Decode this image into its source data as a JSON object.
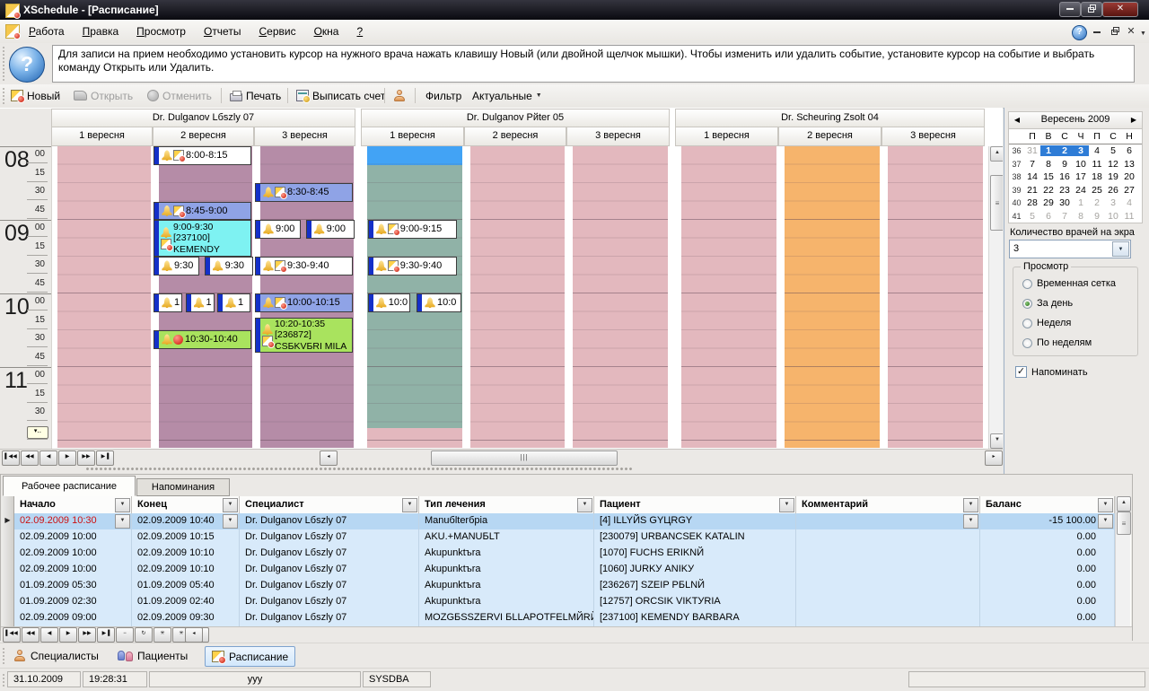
{
  "window": {
    "title": "XSchedule - [Расписание]"
  },
  "menubar": {
    "items": [
      "Работа",
      "Правка",
      "Просмотр",
      "Отчеты",
      "Сервис",
      "Окна",
      "?"
    ]
  },
  "help_panel": {
    "text": "Для записи на прием необходимо установить курсор на нужного врача нажать клавишу Новый (или двойной щелчок мышки). Чтобы изменить или удалить событие, установите курсор на событие и выбрать команду Открыть или Удалить."
  },
  "toolbar": {
    "new": "Новый",
    "open": "Открыть",
    "cancel": "Отменить",
    "print": "Печать",
    "invoice": "Выписать счет",
    "filter_label": "Фильтр",
    "filter_value": "Актуальные"
  },
  "schedule": {
    "doctors": [
      {
        "name": "Dr. Dulganov Lбszlу 07",
        "days": [
          "1 вересня",
          "2 вересня",
          "3 вересня"
        ],
        "day_segments": [
          [
            {
              "s": 480,
              "e": 726,
              "c": "#e3b8be"
            }
          ],
          [
            {
              "s": 480,
              "e": 726,
              "c": "#b58ca7"
            }
          ],
          [
            {
              "s": 480,
              "e": 726,
              "c": "#b58ca7"
            }
          ]
        ]
      },
      {
        "name": "Dr. Dulganov Pйter 05",
        "days": [
          "1 вересня",
          "2 вересня",
          "3 вересня"
        ],
        "day_segments": [
          [
            {
              "s": 480,
              "e": 495,
              "c": "#42a3f5"
            },
            {
              "s": 495,
              "e": 710,
              "c": "#90b2a7"
            },
            {
              "s": 710,
              "e": 726,
              "c": "#e3b8be"
            }
          ],
          [
            {
              "s": 480,
              "e": 726,
              "c": "#e3b8be"
            }
          ],
          [
            {
              "s": 480,
              "e": 726,
              "c": "#e3b8be"
            }
          ]
        ]
      },
      {
        "name": "Dr. Scheuring Zsolt 04",
        "days": [
          "1 вересня",
          "2 вересня",
          "3 вересня"
        ],
        "day_segments": [
          [
            {
              "s": 480,
              "e": 726,
              "c": "#e3b8be"
            }
          ],
          [
            {
              "s": 480,
              "e": 726,
              "c": "#f6b46c"
            }
          ],
          [
            {
              "s": 480,
              "e": 726,
              "c": "#e3b8be"
            }
          ]
        ]
      }
    ],
    "hours": [
      "08",
      "09",
      "10",
      "11"
    ],
    "minutes": [
      "00",
      "15",
      "30",
      "45"
    ],
    "appointments": [
      {
        "doc": 0,
        "day": 1,
        "s": 480,
        "e": 495,
        "bg": "#ffffff",
        "icons": [
          "bell",
          "sched"
        ],
        "label": "8:00-8:15"
      },
      {
        "doc": 0,
        "day": 1,
        "s": 525,
        "e": 540,
        "bg": "#8fa3e6",
        "icons": [
          "bell",
          "sched"
        ],
        "label": "8:45-9:00"
      },
      {
        "doc": 0,
        "day": 1,
        "s": 540,
        "e": 570,
        "bg": "#7ef2f2",
        "icons": [
          "bell",
          "sched"
        ],
        "lines": [
          "9:00-9:30",
          "[237100]",
          "KEMENDY"
        ]
      },
      {
        "doc": 0,
        "day": 1,
        "s": 570,
        "e": 585,
        "x": 0,
        "w": 0.46,
        "bg": "#ffffff",
        "icons": [
          "bell"
        ],
        "label": "9:30"
      },
      {
        "doc": 0,
        "day": 1,
        "s": 570,
        "e": 585,
        "x": 0.51,
        "w": 0.49,
        "bg": "#ffffff",
        "icons": [
          "bell"
        ],
        "label": "9:30"
      },
      {
        "doc": 0,
        "day": 1,
        "s": 600,
        "e": 615,
        "x": 0,
        "w": 0.29,
        "bg": "#ffffff",
        "icons": [
          "bell"
        ],
        "label": "1"
      },
      {
        "doc": 0,
        "day": 1,
        "s": 600,
        "e": 615,
        "x": 0.32,
        "w": 0.29,
        "bg": "#ffffff",
        "icons": [
          "bell"
        ],
        "label": "1"
      },
      {
        "doc": 0,
        "day": 1,
        "s": 600,
        "e": 615,
        "x": 0.64,
        "w": 0.33,
        "bg": "#ffffff",
        "icons": [
          "bell"
        ],
        "label": "1"
      },
      {
        "doc": 0,
        "day": 1,
        "s": 630,
        "e": 645,
        "bg": "#a9e35e",
        "icons": [
          "bell",
          "alarm"
        ],
        "label": "10:30-10:40"
      },
      {
        "doc": 0,
        "day": 2,
        "s": 510,
        "e": 525,
        "bg": "#8fa3e6",
        "icons": [
          "bell",
          "sched"
        ],
        "label": "8:30-8:45"
      },
      {
        "doc": 0,
        "day": 2,
        "s": 540,
        "e": 555,
        "x": 0,
        "w": 0.46,
        "bg": "#ffffff",
        "icons": [
          "bell"
        ],
        "label": "9:00"
      },
      {
        "doc": 0,
        "day": 2,
        "s": 540,
        "e": 555,
        "x": 0.51,
        "w": 0.49,
        "bg": "#ffffff",
        "icons": [
          "bell"
        ],
        "label": "9:00"
      },
      {
        "doc": 0,
        "day": 2,
        "s": 570,
        "e": 585,
        "bg": "#ffffff",
        "icons": [
          "bell",
          "sched"
        ],
        "label": "9:30-9:40"
      },
      {
        "doc": 0,
        "day": 2,
        "s": 600,
        "e": 615,
        "bg": "#8fa3e6",
        "icons": [
          "bell",
          "sched"
        ],
        "label": "10:00-10:15"
      },
      {
        "doc": 0,
        "day": 2,
        "s": 620,
        "e": 648,
        "bg": "#a9e35e",
        "icons": [
          "bell",
          "sched"
        ],
        "lines": [
          "10:20-10:35",
          "[236872]",
          "CSБKVБRI MILA"
        ]
      },
      {
        "doc": 1,
        "day": 0,
        "s": 540,
        "e": 555,
        "x": 0.06,
        "w": 0.88,
        "bg": "#ffffff",
        "icons": [
          "bell",
          "sched"
        ],
        "label": "9:00-9:15"
      },
      {
        "doc": 1,
        "day": 0,
        "s": 570,
        "e": 585,
        "x": 0.06,
        "w": 0.88,
        "bg": "#ffffff",
        "icons": [
          "bell",
          "sched"
        ],
        "label": "9:30-9:40"
      },
      {
        "doc": 1,
        "day": 0,
        "s": 600,
        "e": 615,
        "x": 0.06,
        "w": 0.42,
        "bg": "#ffffff",
        "icons": [
          "bell"
        ],
        "label": "10:0"
      },
      {
        "doc": 1,
        "day": 0,
        "s": 600,
        "e": 615,
        "x": 0.54,
        "w": 0.44,
        "bg": "#ffffff",
        "icons": [
          "bell"
        ],
        "label": "10:0"
      }
    ],
    "nav_buttons": [
      "▌◀◀",
      "◀◀",
      "◀",
      "▶",
      "▶▶",
      "▶▐"
    ]
  },
  "sidebar": {
    "calendar": {
      "title": "Вересень 2009",
      "prev": "◀",
      "next": "▶",
      "dow": [
        "П",
        "В",
        "С",
        "Ч",
        "П",
        "С",
        "Н"
      ],
      "weeks": [
        {
          "num": "36",
          "days": [
            {
              "d": "31",
              "o": 1
            },
            {
              "d": "1",
              "sel": 1
            },
            {
              "d": "2",
              "sel": 1
            },
            {
              "d": "3",
              "sel": 1
            },
            {
              "d": "4"
            },
            {
              "d": "5"
            },
            {
              "d": "6"
            }
          ]
        },
        {
          "num": "37",
          "days": [
            {
              "d": "7"
            },
            {
              "d": "8"
            },
            {
              "d": "9"
            },
            {
              "d": "10"
            },
            {
              "d": "11"
            },
            {
              "d": "12"
            },
            {
              "d": "13"
            }
          ]
        },
        {
          "num": "38",
          "days": [
            {
              "d": "14"
            },
            {
              "d": "15"
            },
            {
              "d": "16"
            },
            {
              "d": "17"
            },
            {
              "d": "18"
            },
            {
              "d": "19"
            },
            {
              "d": "20"
            }
          ]
        },
        {
          "num": "39",
          "days": [
            {
              "d": "21"
            },
            {
              "d": "22"
            },
            {
              "d": "23"
            },
            {
              "d": "24"
            },
            {
              "d": "25"
            },
            {
              "d": "26"
            },
            {
              "d": "27"
            }
          ]
        },
        {
          "num": "40",
          "days": [
            {
              "d": "28"
            },
            {
              "d": "29"
            },
            {
              "d": "30"
            },
            {
              "d": "1",
              "o": 1
            },
            {
              "d": "2",
              "o": 1
            },
            {
              "d": "3",
              "o": 1
            },
            {
              "d": "4",
              "o": 1
            }
          ]
        },
        {
          "num": "41",
          "days": [
            {
              "d": "5",
              "o": 1
            },
            {
              "d": "6",
              "o": 1
            },
            {
              "d": "7",
              "o": 1
            },
            {
              "d": "8",
              "o": 1
            },
            {
              "d": "9",
              "o": 1
            },
            {
              "d": "10",
              "o": 1
            },
            {
              "d": "11",
              "o": 1
            }
          ]
        }
      ]
    },
    "doctors_count_label": "Количество врачей на экра",
    "doctors_count_value": "3",
    "view_group": {
      "title": "Просмотр",
      "options": [
        "Временная сетка",
        "За день",
        "Неделя",
        "По неделям"
      ],
      "selected": 1
    },
    "remind_checkbox": "Напоминать",
    "remind_checked": true
  },
  "bottom": {
    "tabs": [
      "Рабочее расписание",
      "Напоминания"
    ],
    "table": {
      "columns": [
        "Начало",
        "Конец",
        "Специалист",
        "Тип лечения",
        "Пациент",
        "Комментарий",
        "Баланс"
      ],
      "rows": [
        [
          "02.09.2009 10:30",
          "02.09.2009 10:40",
          "Dr. Dulganov Lбszlу 07",
          "Manuбlterбpia",
          "[4] ILLYЙS GYЦRGY",
          "",
          "-15 100.00"
        ],
        [
          "02.09.2009 10:00",
          "02.09.2009 10:15",
          "Dr. Dulganov Lбszlу 07",
          "AKU.+MANUБLT",
          "[230079] URBANCSEK KATALIN",
          "",
          "0.00"
        ],
        [
          "02.09.2009 10:00",
          "02.09.2009 10:10",
          "Dr. Dulganov Lбszlу 07",
          "Akupunktъra",
          "[1070] FUCHS ERIKNЙ",
          "",
          "0.00"
        ],
        [
          "02.09.2009 10:00",
          "02.09.2009 10:10",
          "Dr. Dulganov Lбszlу 07",
          "Akupunktъra",
          "[1060] JURKУ ANIKУ",
          "",
          "0.00"
        ],
        [
          "01.09.2009 05:30",
          "01.09.2009 05:40",
          "Dr. Dulganov Lбszlу 07",
          "Akupunktъra",
          "[236267] SZEIP PБLNЙ",
          "",
          "0.00"
        ],
        [
          "01.09.2009 02:30",
          "01.09.2009 02:40",
          "Dr. Dulganov Lбszlу 07",
          "Akupunktъra",
          "[12757] ORCSIK VIKTУRIA",
          "",
          "0.00"
        ],
        [
          "02.09.2009 09:00",
          "02.09.2009 09:30",
          "Dr. Dulganov Lбszlу 07",
          "MOZGБSSZERVI БLLAPOTFELMЙRЙS",
          "[237100] KEMENDY BARBARA",
          "",
          "0.00"
        ]
      ],
      "selected_row": 0
    },
    "nav_buttons": [
      "▌◀◀",
      "◀◀",
      "◀",
      "▶",
      "▶▶",
      "▶▐",
      "−",
      "↻",
      "✳",
      "✳",
      "▽"
    ]
  },
  "footer": {
    "buttons": [
      "Специалисты",
      "Пациенты",
      "Расписание"
    ],
    "active_button": 2,
    "status": [
      "31.10.2009",
      "19:28:31",
      "ууу",
      "SYSDBA"
    ]
  },
  "colors": {
    "day_pink": "#e3b8be",
    "day_mauve": "#b58ca7",
    "day_teal": "#90b2a7",
    "day_orange": "#f6b46c",
    "day_blue": "#42a3f5",
    "appt_blue": "#8fa3e6",
    "appt_cyan": "#7ef2f2",
    "appt_green": "#a9e35e",
    "selection_blue": "#2e7cd6"
  }
}
